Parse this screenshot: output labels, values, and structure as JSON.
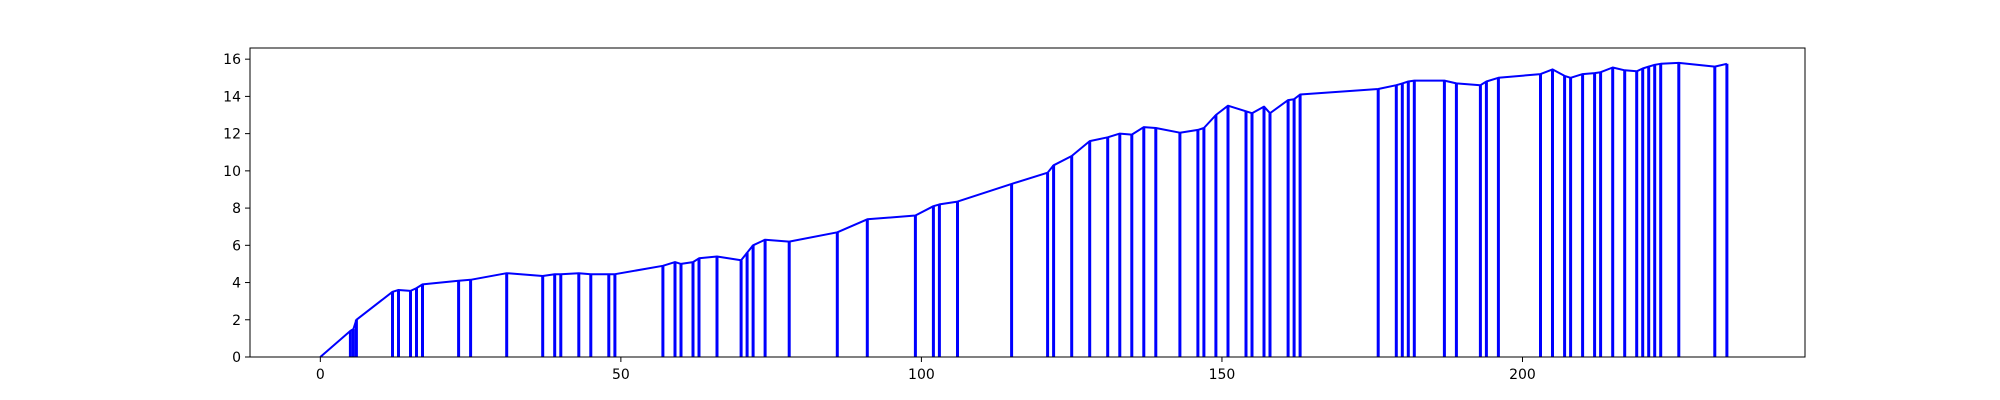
{
  "chart_data": {
    "type": "line",
    "title": "",
    "xlabel": "",
    "ylabel": "",
    "xlim": [
      -11.7,
      247
    ],
    "ylim": [
      0,
      16.6
    ],
    "xticks": [
      0,
      50,
      100,
      150,
      200
    ],
    "yticks": [
      0,
      2,
      4,
      6,
      8,
      10,
      12,
      14,
      16
    ],
    "grid": false,
    "line_color": "#0000ff",
    "series": [
      {
        "values_x": [
          0,
          5,
          5.5,
          6,
          12,
          13,
          15,
          16,
          17,
          23,
          25,
          31,
          37,
          39,
          40,
          43,
          45,
          48,
          49,
          57,
          59,
          60,
          62,
          63,
          66,
          70,
          71,
          72,
          74,
          78,
          86,
          91,
          99,
          102,
          103,
          106,
          115,
          121,
          122,
          125,
          128,
          131,
          133,
          135,
          137,
          139,
          143,
          146,
          147,
          149,
          151,
          154,
          155,
          157,
          158,
          161,
          162,
          163,
          176,
          179,
          180,
          181,
          182,
          187,
          189,
          193,
          194,
          196,
          203,
          205,
          207,
          208,
          210,
          212,
          213,
          215,
          217,
          219,
          220,
          221,
          222,
          223,
          226,
          232,
          234
        ],
        "values_y": [
          0,
          1.4,
          1.5,
          2.0,
          3.5,
          3.6,
          3.55,
          3.7,
          3.9,
          4.1,
          4.15,
          4.5,
          4.35,
          4.45,
          4.45,
          4.5,
          4.45,
          4.45,
          4.45,
          4.9,
          5.1,
          5.0,
          5.1,
          5.3,
          5.4,
          5.2,
          5.6,
          6.0,
          6.3,
          6.2,
          6.7,
          7.4,
          7.6,
          8.1,
          8.2,
          8.35,
          9.3,
          9.9,
          10.3,
          10.8,
          11.6,
          11.8,
          12.0,
          11.95,
          12.35,
          12.3,
          12.05,
          12.2,
          12.3,
          13.0,
          13.5,
          13.2,
          13.1,
          13.45,
          13.1,
          13.8,
          13.85,
          14.1,
          14.4,
          14.6,
          14.7,
          14.8,
          14.85,
          14.85,
          14.7,
          14.6,
          14.8,
          15.0,
          15.2,
          15.45,
          15.1,
          15.0,
          15.2,
          15.25,
          15.3,
          15.55,
          15.4,
          15.35,
          15.5,
          15.6,
          15.7,
          15.75,
          15.8,
          15.6,
          15.75
        ]
      }
    ]
  }
}
